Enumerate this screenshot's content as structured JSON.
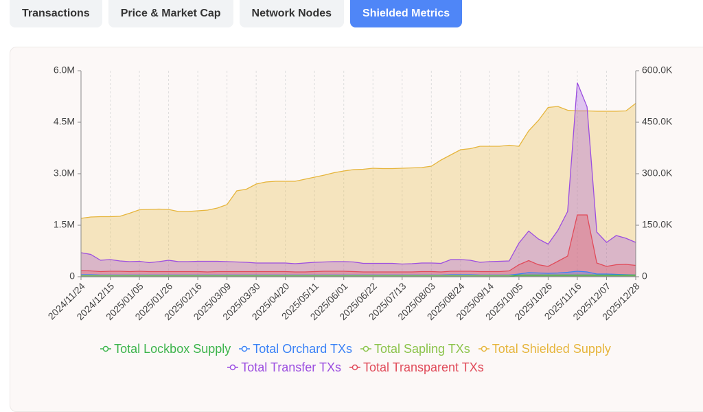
{
  "tabs": [
    "Transactions",
    "Price & Market Cap",
    "Network Nodes",
    "Shielded Metrics"
  ],
  "active_tab": 3,
  "chart_data": {
    "type": "area",
    "categories": [
      "2024/11/24",
      null,
      null,
      "2024/12/15",
      null,
      null,
      "2025/01/05",
      null,
      null,
      "2025/01/26",
      null,
      null,
      "2025/02/16",
      null,
      null,
      "2025/03/09",
      null,
      null,
      "2025/03/30",
      null,
      null,
      "2025/04/20",
      null,
      null,
      "2025/05/11",
      null,
      null,
      "2025/06/01",
      null,
      null,
      "2025/06/22",
      null,
      null,
      "2025/07/13",
      null,
      null,
      "2025/08/03",
      null,
      null,
      "2025/08/24",
      null,
      null,
      "2025/09/14",
      null,
      null,
      "2025/10/05",
      null,
      null,
      "2025/10/26",
      null,
      null,
      "2025/11/16",
      null,
      null,
      "2025/12/07",
      null,
      null,
      "2025/12/28"
    ],
    "ylim": [
      0,
      6000000
    ],
    "yticks": [
      0,
      {
        "value": 1500000,
        "label": "1.5M"
      },
      {
        "value": 3000000,
        "label": "3.0M"
      },
      {
        "value": 4500000,
        "label": "4.5M"
      },
      {
        "value": 6000000,
        "label": "6.0M"
      }
    ],
    "y2lim": [
      0,
      600000
    ],
    "y2ticks": [
      0,
      {
        "value": 150000,
        "label": "150.0K"
      },
      {
        "value": 300000,
        "label": "300.0K"
      },
      {
        "value": 450000,
        "label": "450.0K"
      },
      {
        "value": 600000,
        "label": "600.0K"
      }
    ],
    "grid": "x",
    "series": [
      {
        "name": "Total Shielded Supply",
        "color": "#e6b53c",
        "legend_index": 3,
        "values": [
          1700000,
          1740000,
          1750000,
          1750000,
          1760000,
          1850000,
          1950000,
          1960000,
          1970000,
          1960000,
          1900000,
          1900000,
          1920000,
          1940000,
          2000000,
          2100000,
          2500000,
          2550000,
          2700000,
          2760000,
          2780000,
          2780000,
          2780000,
          2840000,
          2900000,
          2960000,
          3030000,
          3080000,
          3120000,
          3130000,
          3160000,
          3150000,
          3150000,
          3160000,
          3170000,
          3180000,
          3220000,
          3400000,
          3550000,
          3700000,
          3730000,
          3800000,
          3800000,
          3800000,
          3830000,
          3800000,
          4250000,
          4550000,
          4930000,
          4960000,
          4850000,
          4830000,
          4830000,
          4820000,
          4820000,
          4820000,
          4830000,
          5050000
        ]
      },
      {
        "name": "Total Transfer TXs",
        "color": "#9b4de0",
        "axis": "y2",
        "legend_index": 4,
        "values": [
          70000,
          65000,
          48000,
          50000,
          46000,
          44000,
          45000,
          41000,
          44000,
          48000,
          44000,
          44000,
          45000,
          45000,
          45000,
          44000,
          43000,
          42000,
          40000,
          40000,
          40000,
          40000,
          38000,
          40000,
          42000,
          43000,
          44000,
          44000,
          43000,
          39000,
          39000,
          39000,
          39000,
          37000,
          38000,
          40000,
          40000,
          39000,
          50000,
          50000,
          48000,
          42000,
          44000,
          45000,
          46000,
          98000,
          133000,
          110000,
          95000,
          135000,
          190000,
          565000,
          495000,
          130000,
          100000,
          120000,
          112000,
          100000
        ]
      },
      {
        "name": "Total Transparent TXs",
        "color": "#e04b5a",
        "axis": "y2",
        "legend_index": 5,
        "values": [
          18000,
          17000,
          15000,
          16000,
          16000,
          15000,
          16000,
          15000,
          15000,
          15000,
          15000,
          15000,
          15000,
          14000,
          15000,
          15000,
          15000,
          15000,
          15000,
          15000,
          15000,
          15000,
          14000,
          14000,
          15000,
          16000,
          16000,
          16000,
          15000,
          14000,
          14000,
          14000,
          14000,
          14000,
          14000,
          15000,
          15000,
          14000,
          16000,
          16000,
          16000,
          15000,
          15000,
          15000,
          17000,
          35000,
          47000,
          35000,
          30000,
          45000,
          60000,
          180000,
          180000,
          40000,
          30000,
          35000,
          36000,
          33000
        ]
      },
      {
        "name": "Total Orchard TXs",
        "color": "#3b82f6",
        "axis": "y2",
        "legend_index": 1,
        "values": [
          6000,
          6000,
          5000,
          5000,
          5000,
          5000,
          5000,
          5000,
          5000,
          5000,
          5000,
          5000,
          5000,
          5000,
          5000,
          5000,
          5000,
          5000,
          5000,
          5000,
          5000,
          5000,
          5000,
          5000,
          5000,
          5000,
          5000,
          5000,
          5000,
          5000,
          5000,
          5000,
          5000,
          5000,
          5000,
          5000,
          5000,
          5000,
          6000,
          6000,
          6000,
          5000,
          5000,
          5000,
          5000,
          8000,
          12000,
          11000,
          10000,
          11000,
          13000,
          16000,
          14000,
          8000,
          8000,
          7000,
          6000,
          5000
        ]
      },
      {
        "name": "Total Sapling TXs",
        "color": "#8bc34a",
        "axis": "y2",
        "legend_index": 2,
        "values": [
          3000,
          3000,
          3000,
          3000,
          3000,
          3000,
          3000,
          3000,
          3000,
          3000,
          3000,
          3000,
          3000,
          3000,
          3000,
          3000,
          3000,
          3000,
          3000,
          3000,
          3000,
          3000,
          3000,
          3000,
          3000,
          3000,
          3000,
          3000,
          3000,
          3000,
          3000,
          3000,
          3000,
          3000,
          3000,
          3000,
          3000,
          3000,
          3000,
          3000,
          3000,
          3000,
          3000,
          3000,
          3000,
          4000,
          4000,
          4000,
          4000,
          4000,
          4000,
          4000,
          4000,
          4000,
          4000,
          4000,
          4000,
          4000
        ]
      },
      {
        "name": "Total Lockbox Supply",
        "color": "#3cb44b",
        "legend_index": 0,
        "values": [
          0,
          0,
          0,
          0,
          0,
          0,
          0,
          0,
          0,
          0,
          0,
          0,
          0,
          0,
          0,
          0,
          0,
          0,
          0,
          0,
          0,
          0,
          0,
          0,
          0,
          0,
          0,
          0,
          0,
          0,
          0,
          0,
          0,
          0,
          0,
          0,
          0,
          0,
          0,
          0,
          0,
          0,
          0,
          0,
          0,
          50000,
          50000,
          50000,
          50000,
          50000,
          50000,
          50000,
          50000,
          50000,
          50000,
          50000,
          50000,
          50000
        ]
      }
    ]
  }
}
